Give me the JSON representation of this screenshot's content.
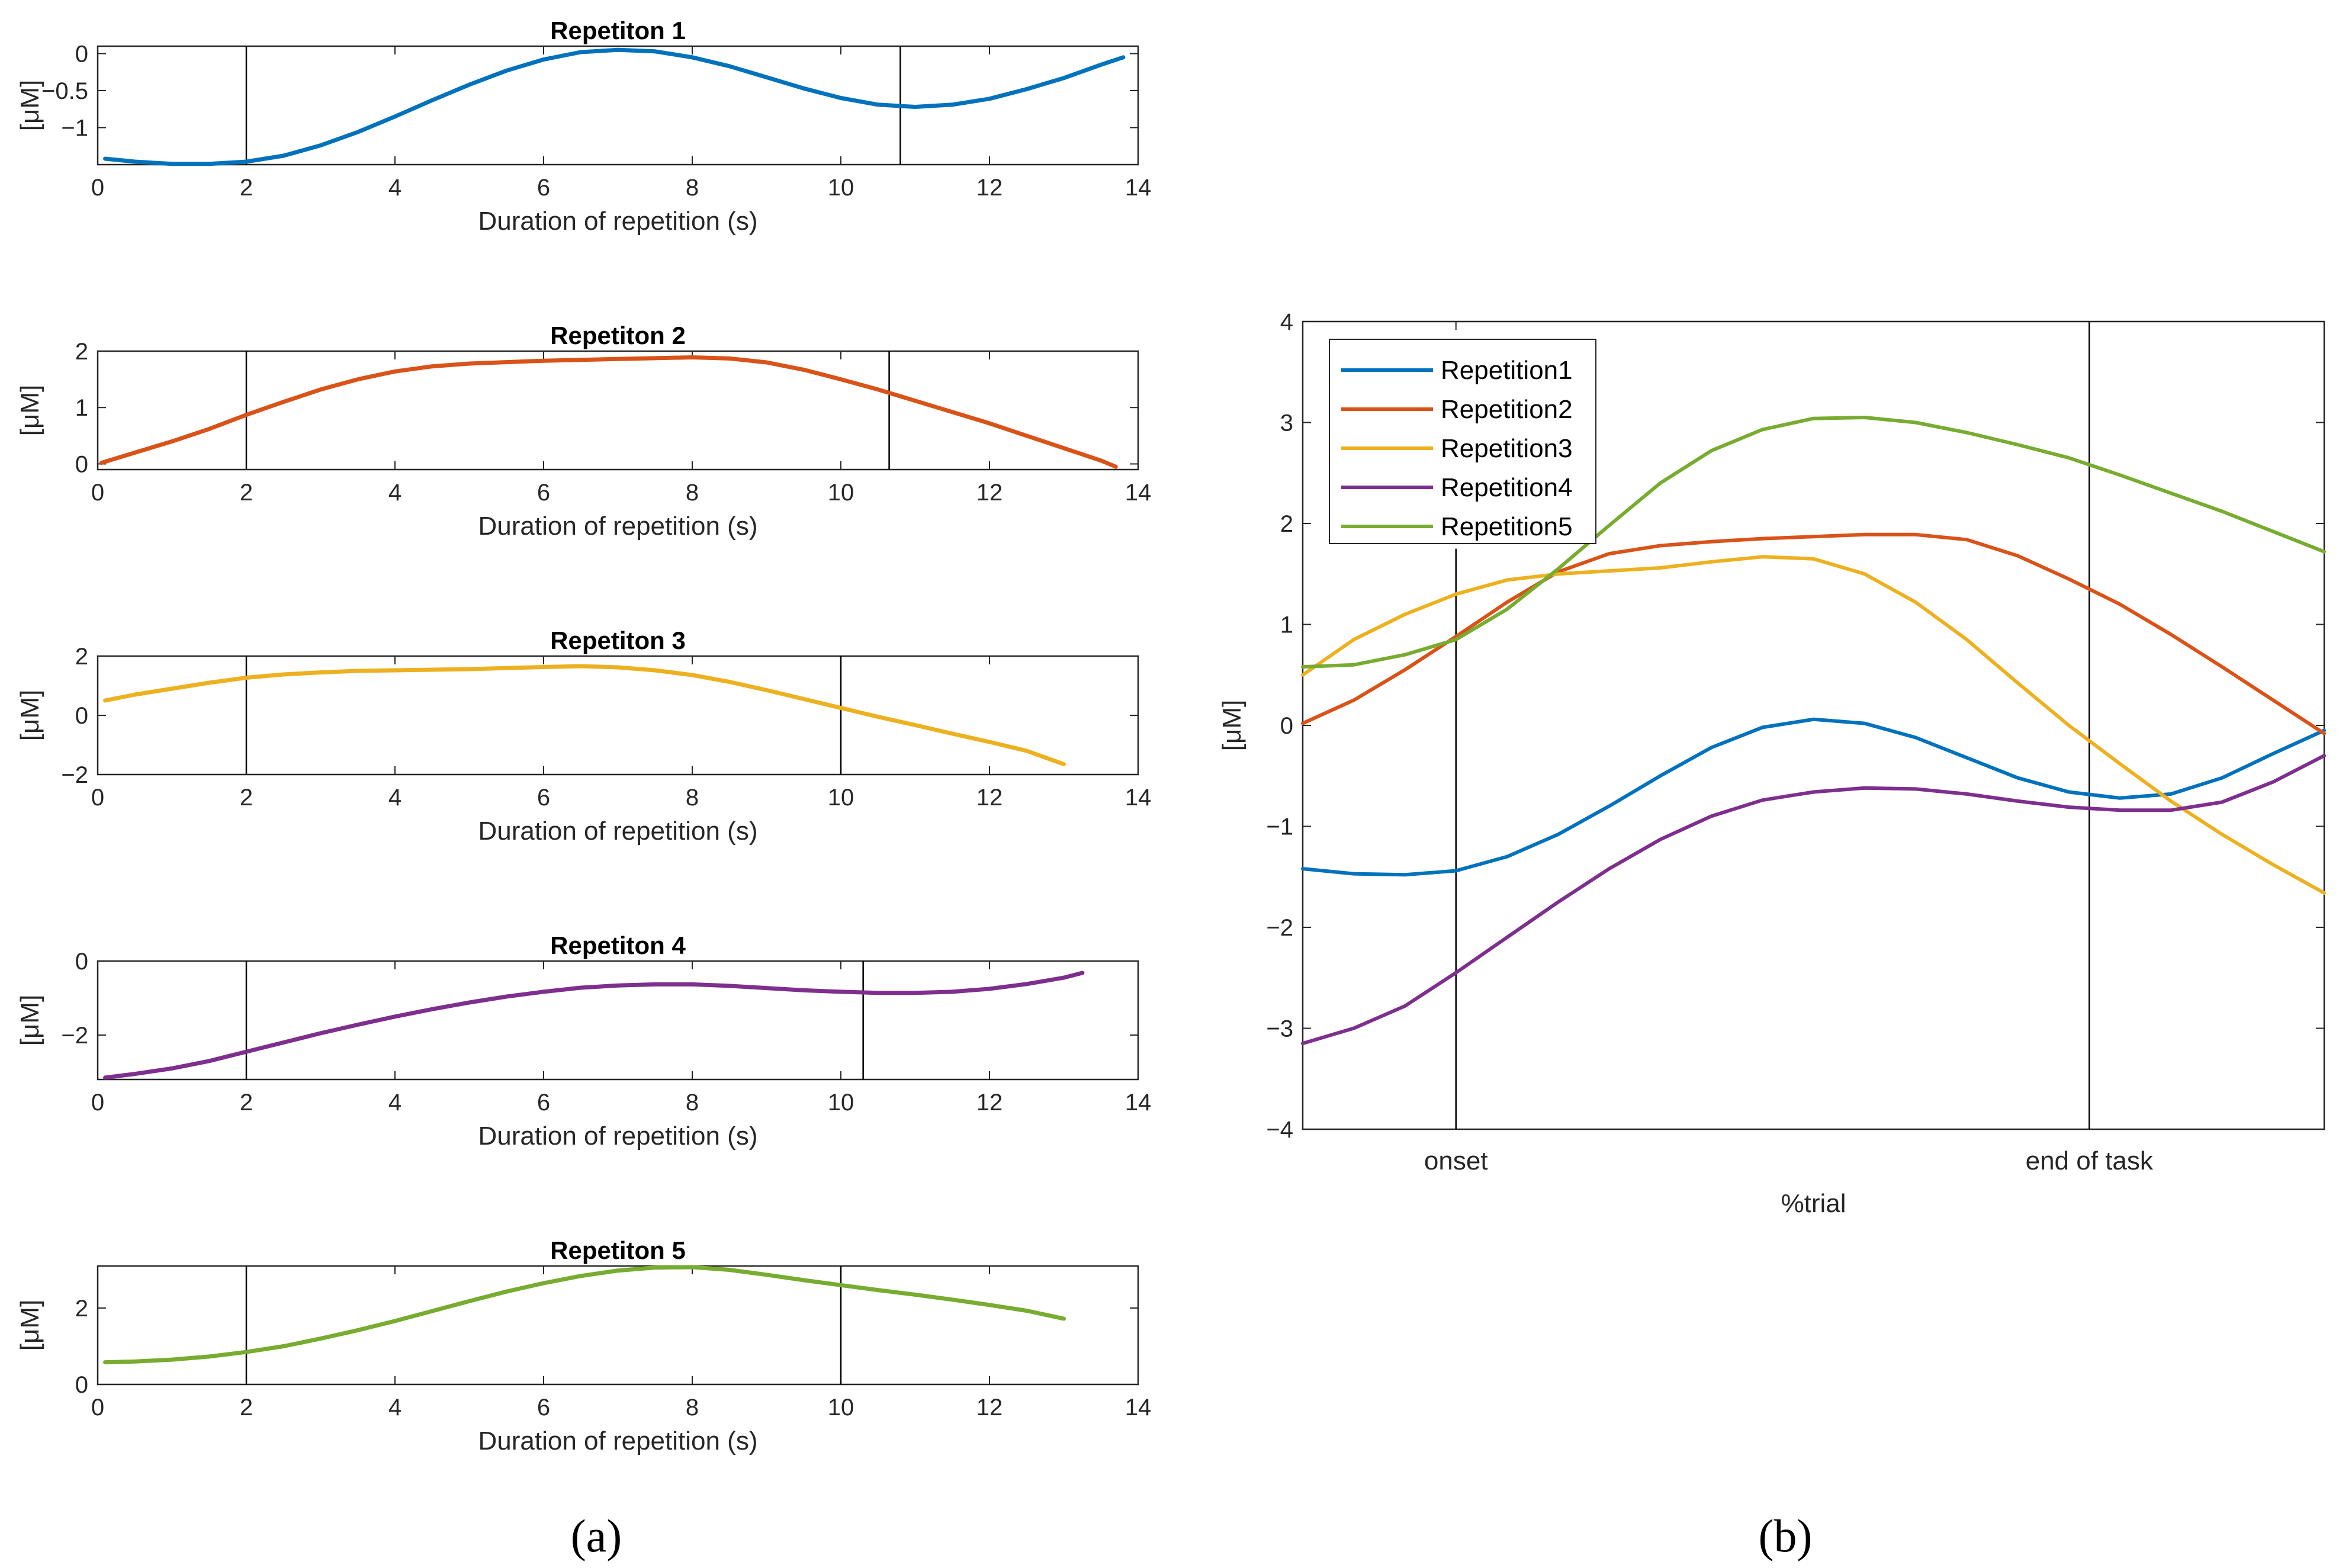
{
  "chart_data": [
    {
      "type": "line",
      "panel": "a",
      "title": "Repetiton 1",
      "xlabel": "Duration of repetition (s)",
      "ylabel": "[μM]",
      "xlim": [
        0,
        14
      ],
      "ylim": [
        -1.5,
        0.1
      ],
      "xticks": [
        0,
        2,
        4,
        6,
        8,
        10,
        12,
        14
      ],
      "yticks": [
        0,
        -0.5,
        -1
      ],
      "ytick_labels": [
        "0",
        "-0.5",
        "-1"
      ],
      "vlines": [
        2,
        10.8
      ],
      "series": [
        {
          "name": "Repetition1",
          "color": "#0072BD",
          "x": [
            0.1,
            0.5,
            1,
            1.5,
            2,
            2.5,
            3,
            3.5,
            4,
            4.5,
            5,
            5.5,
            6,
            6.5,
            7,
            7.5,
            8,
            8.5,
            9,
            9.5,
            10,
            10.5,
            11,
            11.5,
            12,
            12.5,
            13,
            13.5,
            13.8
          ],
          "y": [
            -1.42,
            -1.46,
            -1.49,
            -1.49,
            -1.46,
            -1.38,
            -1.24,
            -1.06,
            -0.85,
            -0.63,
            -0.42,
            -0.23,
            -0.08,
            0.02,
            0.05,
            0.03,
            -0.05,
            -0.17,
            -0.32,
            -0.47,
            -0.6,
            -0.69,
            -0.72,
            -0.69,
            -0.61,
            -0.48,
            -0.33,
            -0.15,
            -0.05
          ]
        }
      ]
    },
    {
      "type": "line",
      "panel": "a",
      "title": "Repetiton 2",
      "xlabel": "Duration of repetition (s)",
      "ylabel": "[μM]",
      "xlim": [
        0,
        14
      ],
      "ylim": [
        -0.1,
        2
      ],
      "xticks": [
        0,
        2,
        4,
        6,
        8,
        10,
        12,
        14
      ],
      "yticks": [
        0,
        1,
        2
      ],
      "ytick_labels": [
        "0",
        "1",
        "2"
      ],
      "vlines": [
        2,
        10.65
      ],
      "series": [
        {
          "name": "Repetition2",
          "color": "#D95319",
          "x": [
            0.05,
            0.5,
            1,
            1.5,
            2,
            2.5,
            3,
            3.5,
            4,
            4.5,
            5,
            6,
            7,
            8,
            8.5,
            9,
            9.5,
            10,
            10.5,
            11,
            11.5,
            12,
            12.5,
            13,
            13.5,
            13.7
          ],
          "y": [
            0.02,
            0.2,
            0.4,
            0.62,
            0.87,
            1.1,
            1.32,
            1.5,
            1.64,
            1.73,
            1.78,
            1.83,
            1.86,
            1.89,
            1.87,
            1.8,
            1.67,
            1.5,
            1.32,
            1.12,
            0.92,
            0.72,
            0.5,
            0.28,
            0.06,
            -0.05
          ]
        }
      ]
    },
    {
      "type": "line",
      "panel": "a",
      "title": "Repetiton 3",
      "xlabel": "Duration of repetition (s)",
      "ylabel": "[μM]",
      "xlim": [
        0,
        14
      ],
      "ylim": [
        -2,
        2
      ],
      "xticks": [
        0,
        2,
        4,
        6,
        8,
        10,
        12,
        14
      ],
      "yticks": [
        2,
        0,
        -2
      ],
      "ytick_labels": [
        "2",
        "0",
        "-2"
      ],
      "vlines": [
        2,
        10
      ],
      "series": [
        {
          "name": "Repetition3",
          "color": "#EDB120",
          "x": [
            0.1,
            0.5,
            1,
            1.5,
            2,
            2.5,
            3,
            3.5,
            4,
            5,
            6,
            6.5,
            7,
            7.5,
            8,
            8.5,
            9,
            9.5,
            10,
            10.5,
            11,
            11.5,
            12,
            12.5,
            13
          ],
          "y": [
            0.5,
            0.7,
            0.9,
            1.1,
            1.27,
            1.38,
            1.45,
            1.5,
            1.52,
            1.56,
            1.63,
            1.66,
            1.62,
            1.52,
            1.36,
            1.13,
            0.85,
            0.55,
            0.25,
            -0.05,
            -0.33,
            -0.62,
            -0.9,
            -1.2,
            -1.65
          ]
        }
      ]
    },
    {
      "type": "line",
      "panel": "a",
      "title": "Repetiton 4",
      "xlabel": "Duration of repetition (s)",
      "ylabel": "[μM]",
      "xlim": [
        0,
        14
      ],
      "ylim": [
        -3.2,
        0
      ],
      "xticks": [
        0,
        2,
        4,
        6,
        8,
        10,
        12,
        14
      ],
      "yticks": [
        0,
        -2
      ],
      "ytick_labels": [
        "0",
        "-2"
      ],
      "vlines": [
        2,
        10.3
      ],
      "series": [
        {
          "name": "Repetition4",
          "color": "#7E2F8E",
          "x": [
            0.1,
            0.5,
            1,
            1.5,
            2,
            2.5,
            3,
            3.5,
            4,
            4.5,
            5,
            5.5,
            6,
            6.5,
            7,
            7.5,
            8,
            8.5,
            9,
            9.5,
            10,
            10.5,
            11,
            11.5,
            12,
            12.5,
            13,
            13.25
          ],
          "y": [
            -3.15,
            -3.05,
            -2.9,
            -2.7,
            -2.45,
            -2.2,
            -1.95,
            -1.72,
            -1.5,
            -1.3,
            -1.12,
            -0.96,
            -0.83,
            -0.72,
            -0.66,
            -0.63,
            -0.63,
            -0.67,
            -0.73,
            -0.79,
            -0.83,
            -0.86,
            -0.86,
            -0.83,
            -0.75,
            -0.62,
            -0.45,
            -0.32
          ]
        }
      ]
    },
    {
      "type": "line",
      "panel": "a",
      "title": "Repetiton 5",
      "xlabel": "Duration of repetition (s)",
      "ylabel": "[μM]",
      "xlim": [
        0,
        14
      ],
      "ylim": [
        0,
        3.1
      ],
      "xticks": [
        0,
        2,
        4,
        6,
        8,
        10,
        12,
        14
      ],
      "yticks": [
        2,
        0
      ],
      "ytick_labels": [
        "2",
        "0"
      ],
      "vlines": [
        2,
        10
      ],
      "series": [
        {
          "name": "Repetition5",
          "color": "#77AC30",
          "x": [
            0.1,
            0.5,
            1,
            1.5,
            2,
            2.5,
            3,
            3.5,
            4,
            4.5,
            5,
            5.5,
            6,
            6.5,
            7,
            7.5,
            8,
            8.5,
            9,
            9.5,
            10,
            10.5,
            11,
            11.5,
            12,
            12.5,
            13
          ],
          "y": [
            0.58,
            0.6,
            0.65,
            0.73,
            0.85,
            1.0,
            1.2,
            1.42,
            1.66,
            1.92,
            2.18,
            2.43,
            2.65,
            2.84,
            2.98,
            3.06,
            3.07,
            3.0,
            2.87,
            2.73,
            2.6,
            2.47,
            2.35,
            2.22,
            2.08,
            1.93,
            1.72
          ]
        }
      ]
    },
    {
      "type": "line",
      "panel": "b",
      "xlabel": "%trial",
      "ylabel": "[μM]",
      "ylim": [
        -4,
        4
      ],
      "yticks": [
        4,
        3,
        2,
        1,
        0,
        -1,
        -2,
        -3,
        -4
      ],
      "xticks": [
        0.15,
        0.77
      ],
      "xtick_labels": [
        "onset",
        "end of task"
      ],
      "vlines": [
        0.15,
        0.77
      ],
      "legend_position": "top-left",
      "series": [
        {
          "name": "Repetition1",
          "color": "#0072BD",
          "x": [
            0,
            0.05,
            0.1,
            0.15,
            0.2,
            0.25,
            0.3,
            0.35,
            0.4,
            0.45,
            0.5,
            0.55,
            0.6,
            0.65,
            0.7,
            0.75,
            0.8,
            0.85,
            0.9,
            0.95,
            1
          ],
          "y": [
            -1.42,
            -1.47,
            -1.48,
            -1.44,
            -1.3,
            -1.08,
            -0.8,
            -0.5,
            -0.22,
            -0.02,
            0.06,
            0.02,
            -0.12,
            -0.32,
            -0.52,
            -0.66,
            -0.72,
            -0.68,
            -0.52,
            -0.28,
            -0.05
          ]
        },
        {
          "name": "Repetition2",
          "color": "#D95319",
          "x": [
            0,
            0.05,
            0.1,
            0.15,
            0.2,
            0.25,
            0.3,
            0.35,
            0.4,
            0.45,
            0.5,
            0.55,
            0.6,
            0.65,
            0.7,
            0.75,
            0.8,
            0.85,
            0.9,
            0.95,
            1
          ],
          "y": [
            0.02,
            0.25,
            0.55,
            0.88,
            1.22,
            1.52,
            1.7,
            1.78,
            1.82,
            1.85,
            1.87,
            1.89,
            1.89,
            1.84,
            1.68,
            1.45,
            1.2,
            0.9,
            0.58,
            0.25,
            -0.08
          ]
        },
        {
          "name": "Repetition3",
          "color": "#EDB120",
          "x": [
            0,
            0.05,
            0.1,
            0.15,
            0.2,
            0.25,
            0.3,
            0.35,
            0.4,
            0.45,
            0.5,
            0.55,
            0.6,
            0.65,
            0.7,
            0.75,
            0.8,
            0.85,
            0.9,
            0.95,
            1
          ],
          "y": [
            0.5,
            0.85,
            1.1,
            1.3,
            1.44,
            1.5,
            1.53,
            1.56,
            1.62,
            1.67,
            1.65,
            1.5,
            1.22,
            0.85,
            0.42,
            0.0,
            -0.38,
            -0.75,
            -1.08,
            -1.38,
            -1.66
          ]
        },
        {
          "name": "Repetition4",
          "color": "#7E2F8E",
          "x": [
            0,
            0.05,
            0.1,
            0.15,
            0.2,
            0.25,
            0.3,
            0.35,
            0.4,
            0.45,
            0.5,
            0.55,
            0.6,
            0.65,
            0.7,
            0.75,
            0.8,
            0.85,
            0.9,
            0.95,
            1
          ],
          "y": [
            -3.15,
            -3.0,
            -2.78,
            -2.45,
            -2.1,
            -1.75,
            -1.42,
            -1.13,
            -0.9,
            -0.74,
            -0.66,
            -0.62,
            -0.63,
            -0.68,
            -0.75,
            -0.81,
            -0.84,
            -0.84,
            -0.76,
            -0.56,
            -0.3
          ]
        },
        {
          "name": "Repetition5",
          "color": "#77AC30",
          "x": [
            0,
            0.05,
            0.1,
            0.15,
            0.2,
            0.25,
            0.3,
            0.35,
            0.4,
            0.45,
            0.5,
            0.55,
            0.6,
            0.65,
            0.7,
            0.75,
            0.8,
            0.85,
            0.9,
            0.95,
            1
          ],
          "y": [
            0.58,
            0.6,
            0.7,
            0.85,
            1.15,
            1.55,
            1.98,
            2.4,
            2.72,
            2.93,
            3.04,
            3.05,
            3.0,
            2.9,
            2.78,
            2.65,
            2.48,
            2.3,
            2.12,
            1.92,
            1.72
          ]
        }
      ]
    }
  ],
  "captions": [
    "(a)",
    "(b)"
  ]
}
